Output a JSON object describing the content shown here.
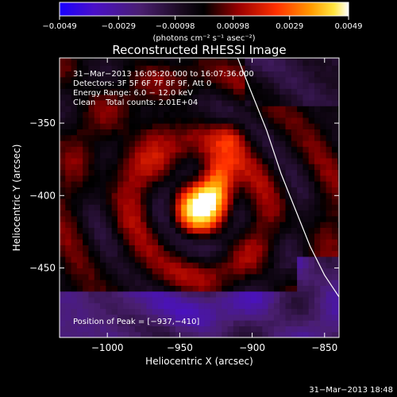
{
  "chart_data": {
    "type": "heatmap",
    "title": "Reconstructed RHESSI Image",
    "xlabel": "Heliocentric X (arcsec)",
    "ylabel": "Heliocentric Y (arcsec)",
    "xlim": [
      -1033,
      -840
    ],
    "ylim": [
      -498,
      -305
    ],
    "x_ticks": [
      -1000,
      -950,
      -900,
      -850
    ],
    "x_tick_labels": [
      "−1000",
      "−950",
      "−900",
      "−850"
    ],
    "y_ticks": [
      -350,
      -400,
      -450
    ],
    "y_tick_labels": [
      "−350",
      "−400",
      "−450"
    ],
    "colorbar": {
      "min": -0.0049,
      "max": 0.0049,
      "colormap": "purple-black-red-yellow-white",
      "ticks": [
        -0.0049,
        -0.0029,
        -0.00098,
        0.00098,
        0.0029,
        0.0049
      ],
      "tick_labels": [
        "−0.0049",
        "−0.0029",
        "−0.00098",
        "0.00098",
        "0.0029",
        "0.0049"
      ],
      "units_label": "(photons cm⁻² s⁻¹ asec⁻²)"
    },
    "annotations": [
      "31−Mar−2013 16:05:20.000 to 16:07:36.000",
      "Detectors: 3F 5F 6F 7F 8F 9F, Att 0",
      "Energy Range: 6.0 − 12.0 keV",
      "Clean    Total counts: 2.01E+04"
    ],
    "peak_label": "Position of Peak = [−937,−410]",
    "peak": [
      -937,
      -410
    ],
    "limb_curve": [
      [
        -910,
        -305
      ],
      [
        -900,
        -330
      ],
      [
        -890,
        -355
      ],
      [
        -880,
        -385
      ],
      [
        -870,
        -410
      ],
      [
        -860,
        -435
      ],
      [
        -850,
        -455
      ],
      [
        -840,
        -470
      ]
    ],
    "footer_timestamp": "31−Mar−2013 18:48"
  }
}
